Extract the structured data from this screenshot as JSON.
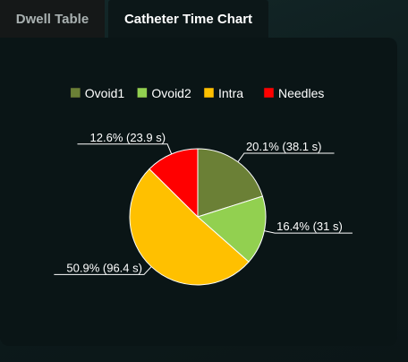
{
  "tabs": [
    {
      "label": "Dwell Table",
      "active": false
    },
    {
      "label": "Catheter Time Chart",
      "active": true
    }
  ],
  "chart_data": {
    "type": "pie",
    "title": "",
    "legend_position": "top",
    "slices": [
      {
        "name": "Ovoid1",
        "percent": 20.1,
        "seconds": 38.1,
        "color": "#6b8036",
        "label": "20.1% (38.1 s)"
      },
      {
        "name": "Ovoid2",
        "percent": 16.4,
        "seconds": 31,
        "color": "#92d050",
        "label": "16.4% (31 s)"
      },
      {
        "name": "Intra",
        "percent": 50.9,
        "seconds": 96.4,
        "color": "#ffc000",
        "label": "50.9% (96.4 s)"
      },
      {
        "name": "Needles",
        "percent": 12.6,
        "seconds": 23.9,
        "color": "#ff0000",
        "label": "12.6% (23.9 s)"
      }
    ]
  }
}
